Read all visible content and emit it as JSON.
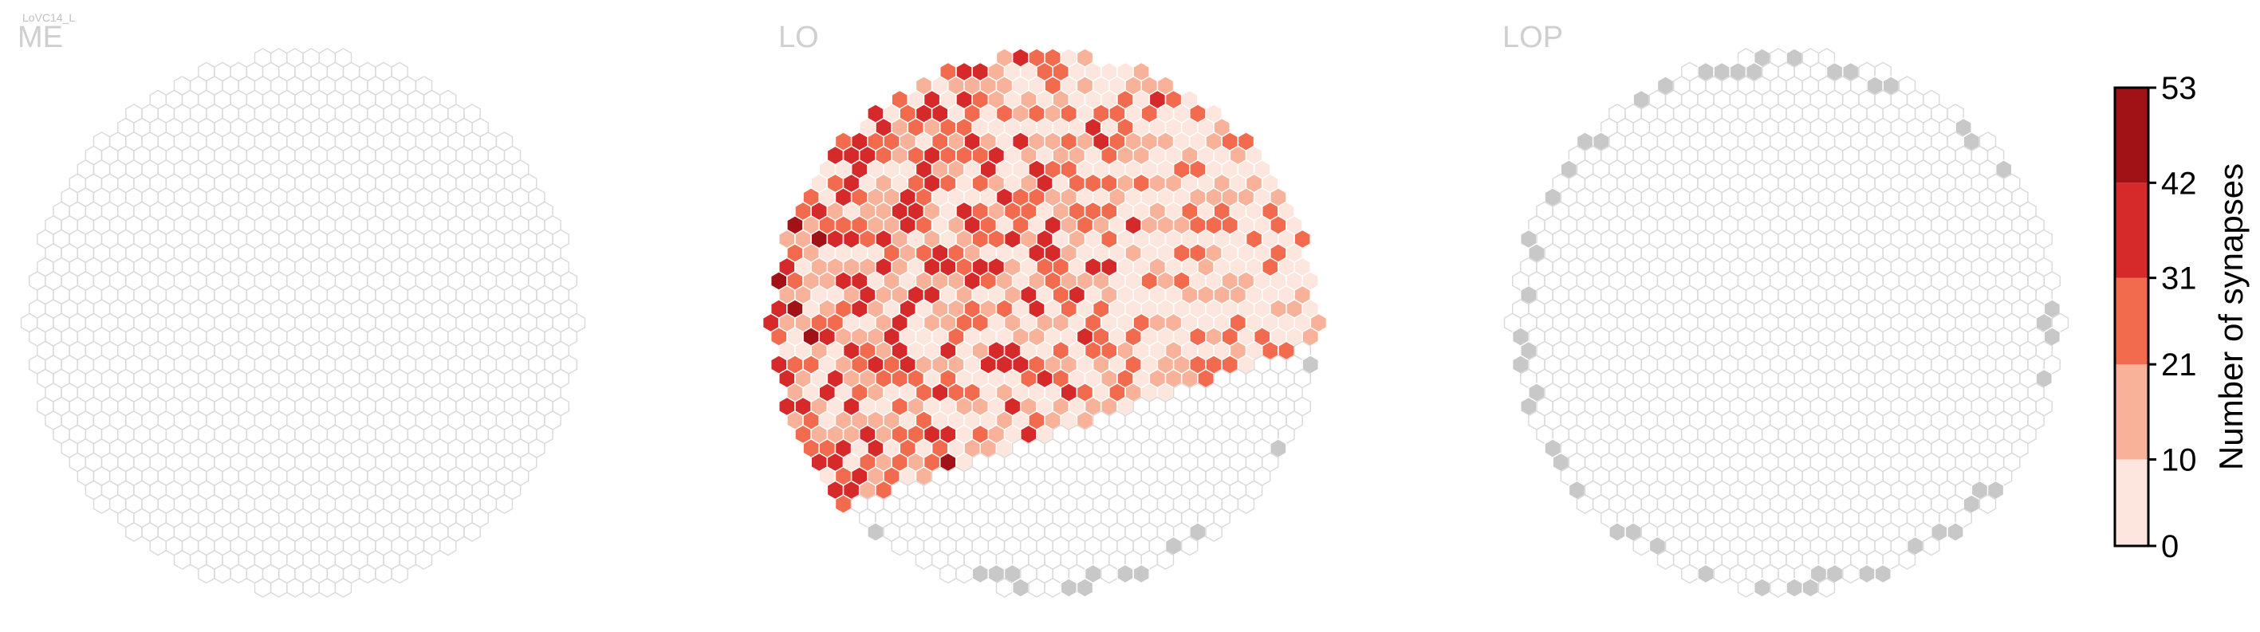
{
  "cell_type_label": "LoVC14_L",
  "colors": {
    "background": "#ffffff",
    "empty_hex_stroke": "#d9d9d9",
    "no_data_fill": "#c8c8c8",
    "bins": [
      "#fde6dd",
      "#f9b29a",
      "#f26b4e",
      "#d6292a",
      "#a11217"
    ]
  },
  "chart_data": [
    {
      "type": "heatmap",
      "title": "ME",
      "region": "ME",
      "grid": false,
      "values_summary": "all columns empty (0 synapses)"
    },
    {
      "type": "heatmap",
      "title": "LO",
      "region": "LO",
      "grid": false,
      "values_summary": "synapses concentrated in upper-left region, values up to 53"
    },
    {
      "type": "heatmap",
      "title": "LOP",
      "region": "LOP",
      "grid": false,
      "values_summary": "all columns empty (0 synapses), boundary columns grey"
    }
  ],
  "colorbar": {
    "label": "Number of synapses",
    "ticks": [
      "0",
      "10",
      "21",
      "31",
      "42",
      "53"
    ],
    "tick_values": [
      0,
      10,
      21,
      31,
      42,
      53
    ],
    "range": [
      0,
      53
    ]
  }
}
